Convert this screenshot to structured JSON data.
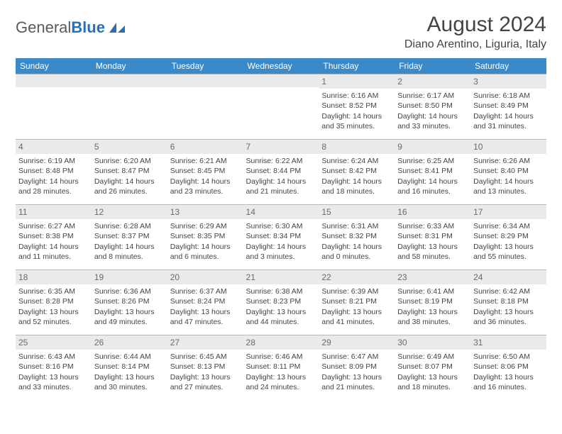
{
  "logo": {
    "word1": "General",
    "word2": "Blue"
  },
  "title": "August 2024",
  "location": "Diano Arentino, Liguria, Italy",
  "colors": {
    "header_bg": "#3a8ac9",
    "header_fg": "#ffffff",
    "daynum_bg": "#e9eaeb",
    "border": "#b8b8b8",
    "logo_blue": "#2a6fb5",
    "text": "#444444"
  },
  "weekdays": [
    "Sunday",
    "Monday",
    "Tuesday",
    "Wednesday",
    "Thursday",
    "Friday",
    "Saturday"
  ],
  "weeks": [
    [
      {
        "blank": true
      },
      {
        "blank": true
      },
      {
        "blank": true
      },
      {
        "blank": true
      },
      {
        "day": 1,
        "sunrise": "6:16 AM",
        "sunset": "8:52 PM",
        "daylight": "14 hours and 35 minutes."
      },
      {
        "day": 2,
        "sunrise": "6:17 AM",
        "sunset": "8:50 PM",
        "daylight": "14 hours and 33 minutes."
      },
      {
        "day": 3,
        "sunrise": "6:18 AM",
        "sunset": "8:49 PM",
        "daylight": "14 hours and 31 minutes."
      }
    ],
    [
      {
        "day": 4,
        "sunrise": "6:19 AM",
        "sunset": "8:48 PM",
        "daylight": "14 hours and 28 minutes."
      },
      {
        "day": 5,
        "sunrise": "6:20 AM",
        "sunset": "8:47 PM",
        "daylight": "14 hours and 26 minutes."
      },
      {
        "day": 6,
        "sunrise": "6:21 AM",
        "sunset": "8:45 PM",
        "daylight": "14 hours and 23 minutes."
      },
      {
        "day": 7,
        "sunrise": "6:22 AM",
        "sunset": "8:44 PM",
        "daylight": "14 hours and 21 minutes."
      },
      {
        "day": 8,
        "sunrise": "6:24 AM",
        "sunset": "8:42 PM",
        "daylight": "14 hours and 18 minutes."
      },
      {
        "day": 9,
        "sunrise": "6:25 AM",
        "sunset": "8:41 PM",
        "daylight": "14 hours and 16 minutes."
      },
      {
        "day": 10,
        "sunrise": "6:26 AM",
        "sunset": "8:40 PM",
        "daylight": "14 hours and 13 minutes."
      }
    ],
    [
      {
        "day": 11,
        "sunrise": "6:27 AM",
        "sunset": "8:38 PM",
        "daylight": "14 hours and 11 minutes."
      },
      {
        "day": 12,
        "sunrise": "6:28 AM",
        "sunset": "8:37 PM",
        "daylight": "14 hours and 8 minutes."
      },
      {
        "day": 13,
        "sunrise": "6:29 AM",
        "sunset": "8:35 PM",
        "daylight": "14 hours and 6 minutes."
      },
      {
        "day": 14,
        "sunrise": "6:30 AM",
        "sunset": "8:34 PM",
        "daylight": "14 hours and 3 minutes."
      },
      {
        "day": 15,
        "sunrise": "6:31 AM",
        "sunset": "8:32 PM",
        "daylight": "14 hours and 0 minutes."
      },
      {
        "day": 16,
        "sunrise": "6:33 AM",
        "sunset": "8:31 PM",
        "daylight": "13 hours and 58 minutes."
      },
      {
        "day": 17,
        "sunrise": "6:34 AM",
        "sunset": "8:29 PM",
        "daylight": "13 hours and 55 minutes."
      }
    ],
    [
      {
        "day": 18,
        "sunrise": "6:35 AM",
        "sunset": "8:28 PM",
        "daylight": "13 hours and 52 minutes."
      },
      {
        "day": 19,
        "sunrise": "6:36 AM",
        "sunset": "8:26 PM",
        "daylight": "13 hours and 49 minutes."
      },
      {
        "day": 20,
        "sunrise": "6:37 AM",
        "sunset": "8:24 PM",
        "daylight": "13 hours and 47 minutes."
      },
      {
        "day": 21,
        "sunrise": "6:38 AM",
        "sunset": "8:23 PM",
        "daylight": "13 hours and 44 minutes."
      },
      {
        "day": 22,
        "sunrise": "6:39 AM",
        "sunset": "8:21 PM",
        "daylight": "13 hours and 41 minutes."
      },
      {
        "day": 23,
        "sunrise": "6:41 AM",
        "sunset": "8:19 PM",
        "daylight": "13 hours and 38 minutes."
      },
      {
        "day": 24,
        "sunrise": "6:42 AM",
        "sunset": "8:18 PM",
        "daylight": "13 hours and 36 minutes."
      }
    ],
    [
      {
        "day": 25,
        "sunrise": "6:43 AM",
        "sunset": "8:16 PM",
        "daylight": "13 hours and 33 minutes."
      },
      {
        "day": 26,
        "sunrise": "6:44 AM",
        "sunset": "8:14 PM",
        "daylight": "13 hours and 30 minutes."
      },
      {
        "day": 27,
        "sunrise": "6:45 AM",
        "sunset": "8:13 PM",
        "daylight": "13 hours and 27 minutes."
      },
      {
        "day": 28,
        "sunrise": "6:46 AM",
        "sunset": "8:11 PM",
        "daylight": "13 hours and 24 minutes."
      },
      {
        "day": 29,
        "sunrise": "6:47 AM",
        "sunset": "8:09 PM",
        "daylight": "13 hours and 21 minutes."
      },
      {
        "day": 30,
        "sunrise": "6:49 AM",
        "sunset": "8:07 PM",
        "daylight": "13 hours and 18 minutes."
      },
      {
        "day": 31,
        "sunrise": "6:50 AM",
        "sunset": "8:06 PM",
        "daylight": "13 hours and 16 minutes."
      }
    ]
  ],
  "labels": {
    "sunrise": "Sunrise:",
    "sunset": "Sunset:",
    "daylight": "Daylight:"
  }
}
